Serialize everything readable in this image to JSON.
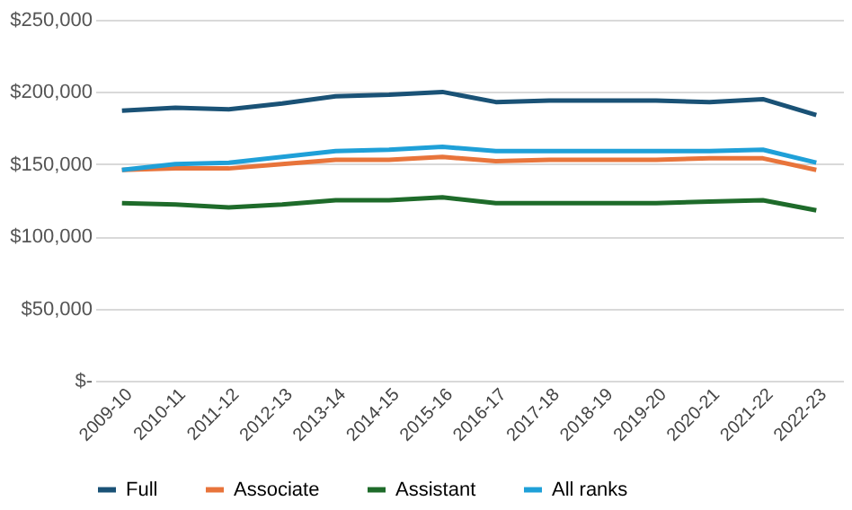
{
  "chart_data": {
    "type": "line",
    "categories": [
      "2009-10",
      "2010-11",
      "2011-12",
      "2012-13",
      "2013-14",
      "2014-15",
      "2015-16",
      "2016-17",
      "2017-18",
      "2018-19",
      "2019-20",
      "2020-21",
      "2021-22",
      "2022-23"
    ],
    "series": [
      {
        "name": "Full",
        "color": "#1a5276",
        "values": [
          187000,
          189000,
          188000,
          192000,
          197000,
          198000,
          200000,
          193000,
          194000,
          194000,
          194000,
          193000,
          195000,
          184000
        ]
      },
      {
        "name": "Associate",
        "color": "#e8743b",
        "values": [
          146000,
          147000,
          147000,
          150000,
          153000,
          153000,
          155000,
          152000,
          153000,
          153000,
          153000,
          154000,
          154000,
          146000
        ]
      },
      {
        "name": "Assistant",
        "color": "#1e6b2a",
        "values": [
          123000,
          122000,
          120000,
          122000,
          125000,
          125000,
          127000,
          123000,
          123000,
          123000,
          123000,
          124000,
          125000,
          118000
        ]
      },
      {
        "name": "All ranks",
        "color": "#1fa0d8",
        "values": [
          146000,
          150000,
          151000,
          155000,
          159000,
          160000,
          162000,
          159000,
          159000,
          159000,
          159000,
          159000,
          160000,
          151000
        ]
      }
    ],
    "ylim": [
      0,
      250000
    ],
    "yticks": [
      {
        "value": 0,
        "label": "$-"
      },
      {
        "value": 50000,
        "label": "$50,000"
      },
      {
        "value": 100000,
        "label": "$100,000"
      },
      {
        "value": 150000,
        "label": "$150,000"
      },
      {
        "value": 200000,
        "label": "$200,000"
      },
      {
        "value": 250000,
        "label": "$250,000"
      }
    ],
    "grid": "y",
    "legend": "bottom",
    "marker": "none",
    "line_style": "solid"
  }
}
